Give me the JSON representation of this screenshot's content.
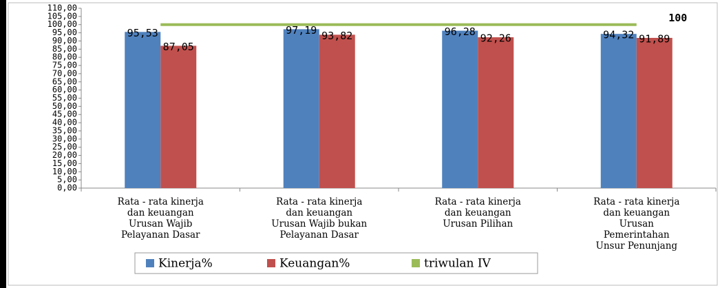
{
  "chart_data": {
    "type": "bar",
    "categories": [
      "Rata - rata kinerja\ndan keuangan\nUrusan Wajib\nPelayanan Dasar",
      "Rata - rata kinerja\ndan keuangan\nUrusan Wajib bukan\nPelayanan Dasar",
      "Rata - rata kinerja\ndan keuangan\nUrusan Pilihan",
      "Rata - rata kinerja\ndan keuangan\nUrusan\nPemerintahan\nUnsur Penunjang"
    ],
    "series": [
      {
        "name": "Kinerja%",
        "color": "#4f81bd",
        "values": [
          95.53,
          97.19,
          96.28,
          94.32
        ],
        "value_labels": [
          "95,53",
          "97,19",
          "96,28",
          "94,32"
        ]
      },
      {
        "name": "Keuangan%",
        "color": "#c0504d",
        "values": [
          87.05,
          93.82,
          92.26,
          91.89
        ],
        "value_labels": [
          "87,05",
          "93,82",
          "92,26",
          "91,89"
        ]
      },
      {
        "name": "triwulan IV",
        "color": "#9bbb59",
        "type": "line",
        "values": [
          100,
          100,
          100,
          100
        ],
        "value_labels": [
          null,
          null,
          null,
          "100"
        ]
      }
    ],
    "ylim": [
      0,
      110
    ],
    "yticks": [
      {
        "value": 0,
        "label": "0,00"
      },
      {
        "value": 5,
        "label": "5,00"
      },
      {
        "value": 10,
        "label": "10,00"
      },
      {
        "value": 15,
        "label": "15,00"
      },
      {
        "value": 20,
        "label": "20,00"
      },
      {
        "value": 25,
        "label": "25,00"
      },
      {
        "value": 30,
        "label": "30,00"
      },
      {
        "value": 35,
        "label": "35,00"
      },
      {
        "value": 40,
        "label": "40,00"
      },
      {
        "value": 45,
        "label": "45,00"
      },
      {
        "value": 50,
        "label": "50,00"
      },
      {
        "value": 55,
        "label": "55,00"
      },
      {
        "value": 60,
        "label": "60,00"
      },
      {
        "value": 65,
        "label": "65,00"
      },
      {
        "value": 70,
        "label": "70,00"
      },
      {
        "value": 75,
        "label": "75,00"
      },
      {
        "value": 80,
        "label": "80,00"
      },
      {
        "value": 85,
        "label": "85,00"
      },
      {
        "value": 90,
        "label": "90,00"
      },
      {
        "value": 95,
        "label": "95,00"
      },
      {
        "value": 100,
        "label": "100,00"
      },
      {
        "value": 105,
        "label": "105,00"
      },
      {
        "value": 110,
        "label": "110,00"
      }
    ],
    "grid": false,
    "legend": "bottom"
  }
}
